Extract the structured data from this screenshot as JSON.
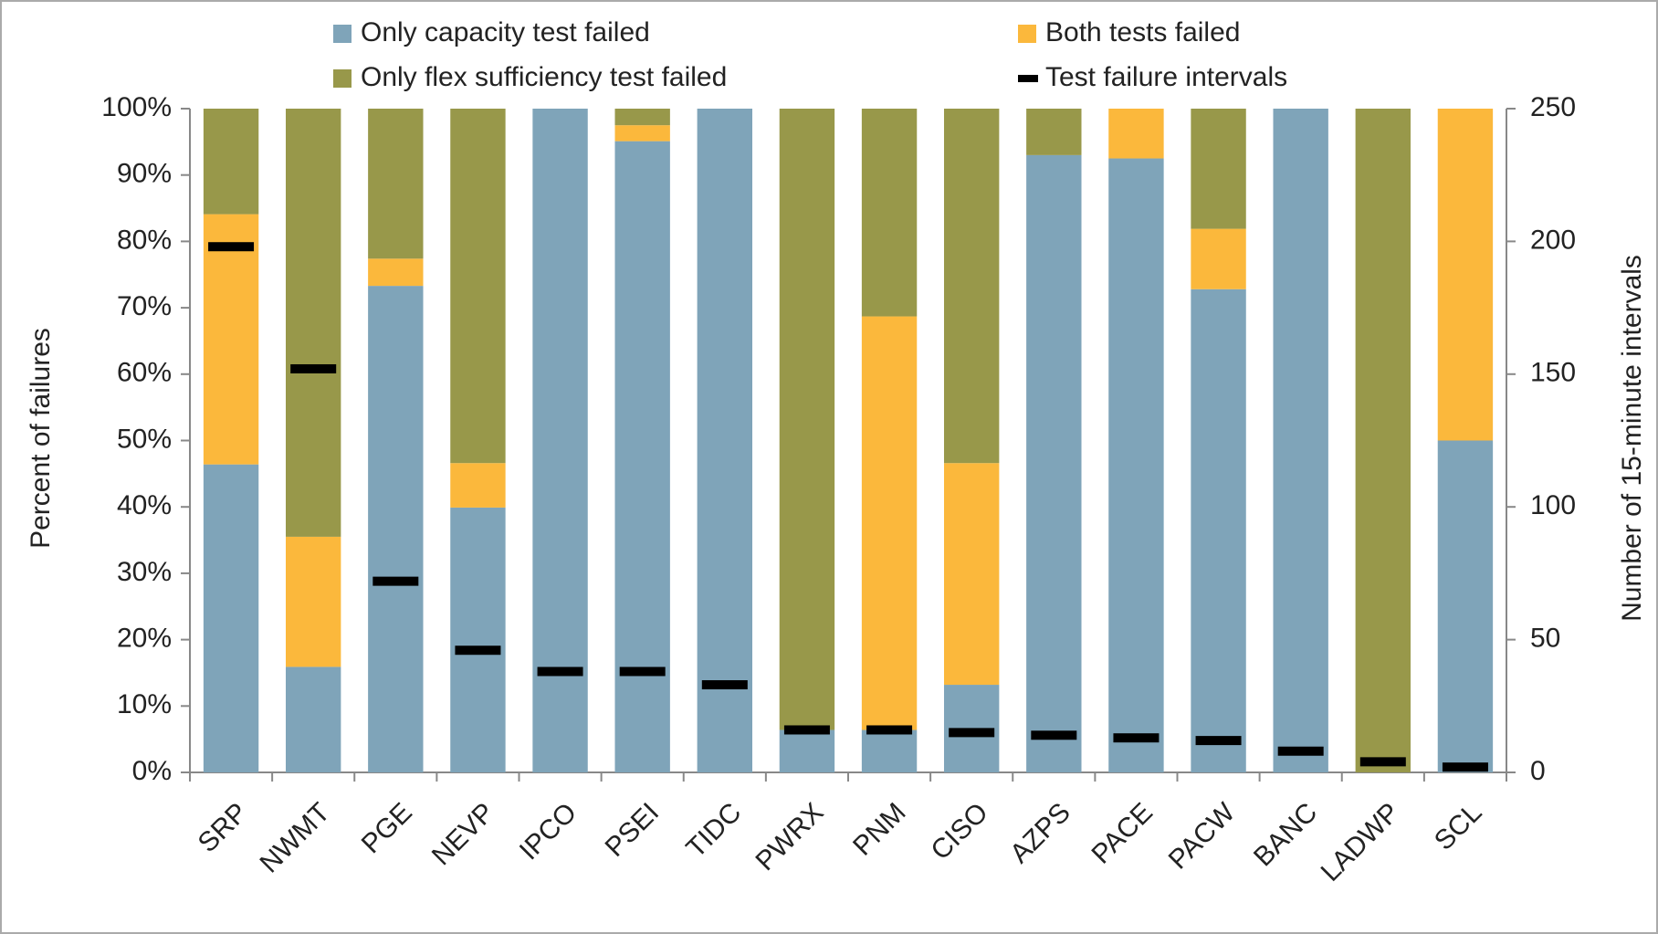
{
  "chart_data": {
    "type": "bar",
    "categories": [
      "SRP",
      "NWMT",
      "PGE",
      "NEVP",
      "IPCO",
      "PSEI",
      "TIDC",
      "PWRX",
      "PNM",
      "CISO",
      "AZPS",
      "PACE",
      "PACW",
      "BANC",
      "LADWP",
      "SCL"
    ],
    "series": [
      {
        "name": "Only capacity test failed",
        "color": "#7fa4b9",
        "values": [
          46.4,
          15.9,
          73.3,
          39.9,
          100,
          95.1,
          100,
          6.4,
          6.4,
          13.2,
          93.0,
          92.5,
          72.8,
          100,
          0,
          50
        ]
      },
      {
        "name": "Both tests failed",
        "color": "#fbb83c",
        "values": [
          37.7,
          19.6,
          4.1,
          6.7,
          0,
          2.4,
          0,
          0,
          62.3,
          33.4,
          0,
          7.5,
          9.1,
          0,
          0,
          50
        ]
      },
      {
        "name": "Only flex sufficiency test failed",
        "color": "#98984a",
        "values": [
          15.9,
          64.5,
          22.6,
          53.4,
          0,
          2.5,
          0,
          93.6,
          31.3,
          53.4,
          7.0,
          0,
          18.1,
          0,
          100,
          0
        ]
      },
      {
        "name": "Test failure intervals",
        "color": "#000000",
        "axis": "y2",
        "type": "marker",
        "values": [
          198,
          152,
          72,
          46,
          38,
          38,
          33,
          16,
          16,
          15,
          14,
          13,
          12,
          8,
          4,
          2
        ]
      }
    ],
    "y_label": "Percent of failures",
    "y2_label": "Number of 15-minute intervals",
    "ylim": [
      0,
      100
    ],
    "yticks": [
      {
        "value": 0,
        "label": "0%"
      },
      {
        "value": 10,
        "label": "10%"
      },
      {
        "value": 20,
        "label": "20%"
      },
      {
        "value": 30,
        "label": "30%"
      },
      {
        "value": 40,
        "label": "40%"
      },
      {
        "value": 50,
        "label": "50%"
      },
      {
        "value": 60,
        "label": "60%"
      },
      {
        "value": 70,
        "label": "70%"
      },
      {
        "value": 80,
        "label": "80%"
      },
      {
        "value": 90,
        "label": "90%"
      },
      {
        "value": 100,
        "label": "100%"
      }
    ],
    "y2lim": [
      0,
      250
    ],
    "y2ticks": [
      0,
      50,
      100,
      150,
      200,
      250
    ],
    "stacked": true,
    "legend": "top"
  }
}
